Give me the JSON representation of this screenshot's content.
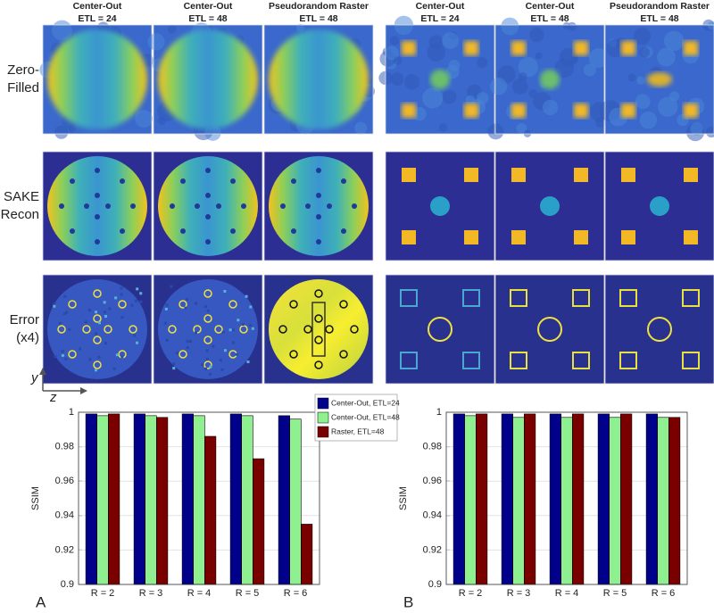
{
  "figure": {
    "column_headers": [
      [
        "Center-Out",
        "ETL = 24"
      ],
      [
        "Center-Out",
        "ETL = 48"
      ],
      [
        "Pseudorandom Raster",
        "ETL = 48"
      ],
      [
        "Center-Out",
        "ETL = 24"
      ],
      [
        "Center-Out",
        "ETL = 48"
      ],
      [
        "Pseudorandom Raster",
        "ETL = 48"
      ]
    ],
    "row_labels": [
      [
        "Zero-",
        "Filled"
      ],
      [
        "SAKE",
        "Recon"
      ],
      [
        "Error",
        "(x4)"
      ]
    ],
    "axis_labels": [
      "y",
      "z"
    ],
    "panel_labels": [
      "A",
      "B"
    ]
  },
  "chart_data": [
    {
      "type": "bar",
      "ylabel": "SSIM",
      "categories": [
        "R = 2",
        "R = 3",
        "R = 4",
        "R = 5",
        "R = 6"
      ],
      "series": [
        {
          "name": "Center-Out, ETL=24",
          "color": "#00008b",
          "values": [
            0.999,
            0.999,
            0.999,
            0.999,
            0.998
          ]
        },
        {
          "name": "Center-Out, ETL=48",
          "color": "#8ef08e",
          "values": [
            0.998,
            0.998,
            0.998,
            0.998,
            0.996
          ]
        },
        {
          "name": "Raster, ETL=48",
          "color": "#7a0000",
          "values": [
            0.999,
            0.997,
            0.986,
            0.973,
            0.935
          ]
        }
      ],
      "ylim": [
        0.9,
        1
      ],
      "yticks": [
        0.9,
        0.92,
        0.94,
        0.96,
        0.98,
        1
      ],
      "grid": true,
      "legend": "top-right"
    },
    {
      "type": "bar",
      "ylabel": "SSIM",
      "categories": [
        "R = 2",
        "R = 3",
        "R = 4",
        "R = 5",
        "R = 6"
      ],
      "series": [
        {
          "color": "#00008b",
          "values": [
            0.999,
            0.999,
            0.999,
            0.999,
            0.999
          ]
        },
        {
          "color": "#8ef08e",
          "values": [
            0.998,
            0.997,
            0.997,
            0.997,
            0.997
          ]
        },
        {
          "color": "#7a0000",
          "values": [
            0.999,
            0.999,
            0.999,
            0.999,
            0.997
          ]
        }
      ],
      "ylim": [
        0.9,
        1
      ],
      "yticks": [
        0.9,
        0.92,
        0.94,
        0.96,
        0.98,
        1
      ],
      "grid": true
    }
  ]
}
